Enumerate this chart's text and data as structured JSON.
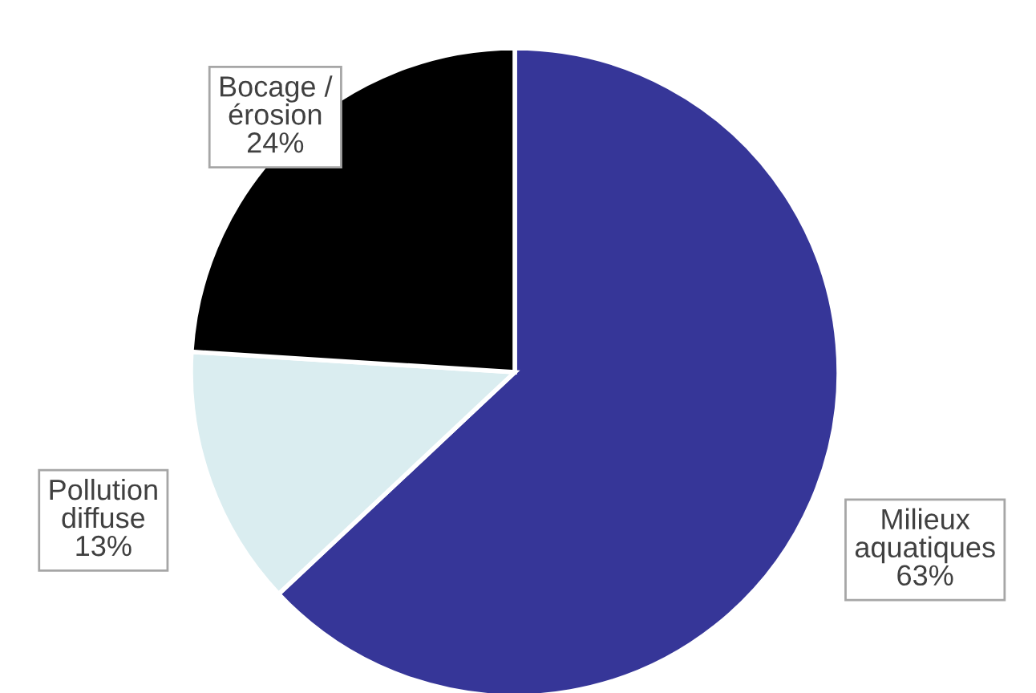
{
  "chart_data": {
    "type": "pie",
    "categories": [
      "Milieux\naquatiques",
      "Pollution\ndiffuse",
      "Bocage /\nérosion"
    ],
    "values": [
      63,
      13,
      24
    ],
    "value_labels": [
      "63%",
      "13%",
      "24%"
    ],
    "colors": [
      "#363698",
      "#daedf0",
      "#000000"
    ],
    "legend": false
  }
}
